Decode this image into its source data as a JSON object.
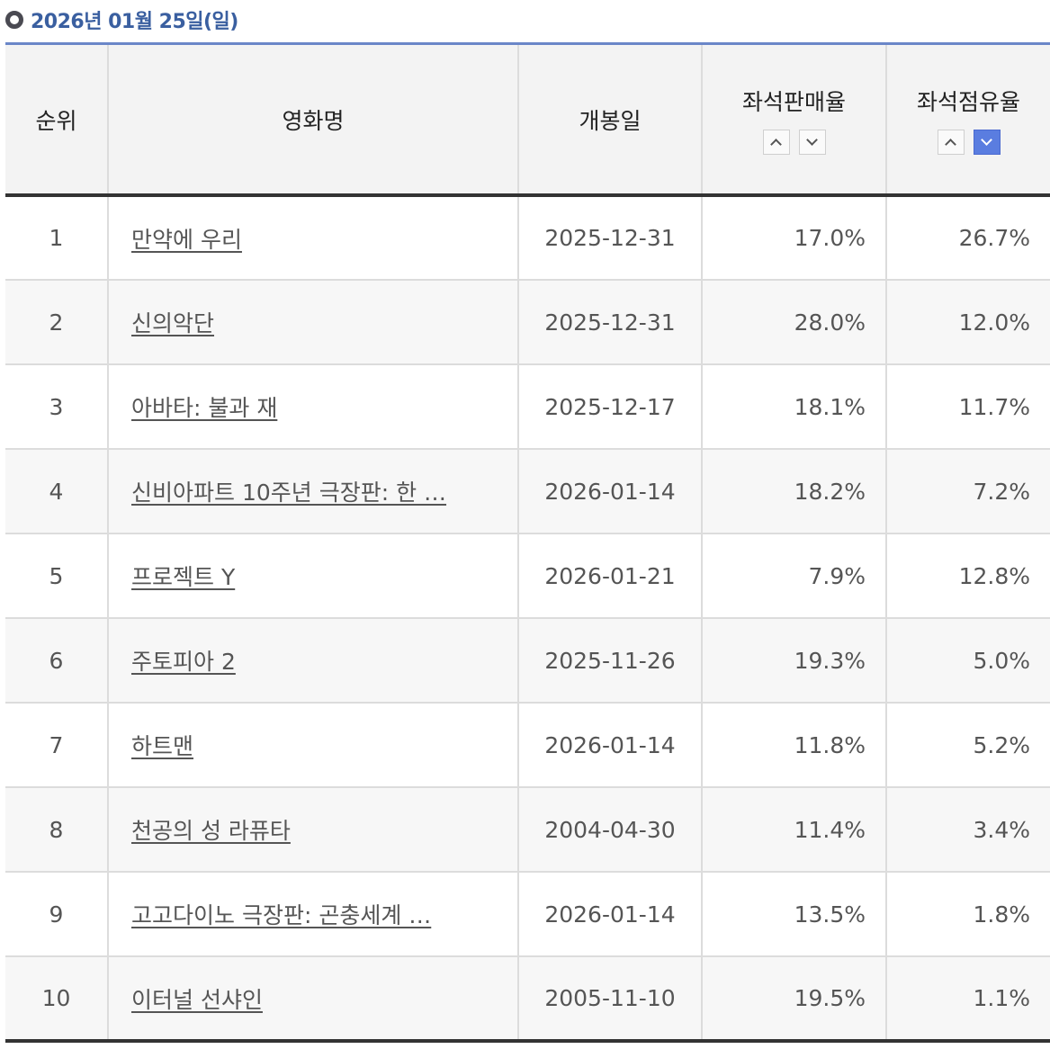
{
  "header": {
    "title": "2026년 01월 25일(일)"
  },
  "columns": {
    "rank": "순위",
    "movie": "영화명",
    "release": "개봉일",
    "sales_rate": "좌석판매율",
    "share_rate": "좌석점유율"
  },
  "sort": {
    "active_column": "share_rate",
    "active_direction": "down"
  },
  "rows": [
    {
      "rank": "1",
      "movie": "만약에 우리",
      "release": "2025-12-31",
      "sales_rate": "17.0%",
      "share_rate": "26.7%"
    },
    {
      "rank": "2",
      "movie": "신의악단",
      "release": "2025-12-31",
      "sales_rate": "28.0%",
      "share_rate": "12.0%"
    },
    {
      "rank": "3",
      "movie": "아바타: 불과 재",
      "release": "2025-12-17",
      "sales_rate": "18.1%",
      "share_rate": "11.7%"
    },
    {
      "rank": "4",
      "movie": "신비아파트 10주년 극장판: 한 …",
      "release": "2026-01-14",
      "sales_rate": "18.2%",
      "share_rate": "7.2%"
    },
    {
      "rank": "5",
      "movie": "프로젝트 Y",
      "release": "2026-01-21",
      "sales_rate": "7.9%",
      "share_rate": "12.8%"
    },
    {
      "rank": "6",
      "movie": "주토피아 2",
      "release": "2025-11-26",
      "sales_rate": "19.3%",
      "share_rate": "5.0%"
    },
    {
      "rank": "7",
      "movie": "하트맨",
      "release": "2026-01-14",
      "sales_rate": "11.8%",
      "share_rate": "5.2%"
    },
    {
      "rank": "8",
      "movie": "천공의 성 라퓨타",
      "release": "2004-04-30",
      "sales_rate": "11.4%",
      "share_rate": "3.4%"
    },
    {
      "rank": "9",
      "movie": "고고다이노 극장판: 곤충세계 …",
      "release": "2026-01-14",
      "sales_rate": "13.5%",
      "share_rate": "1.8%"
    },
    {
      "rank": "10",
      "movie": "이터널 선샤인",
      "release": "2005-11-10",
      "sales_rate": "19.5%",
      "share_rate": "1.1%"
    }
  ]
}
